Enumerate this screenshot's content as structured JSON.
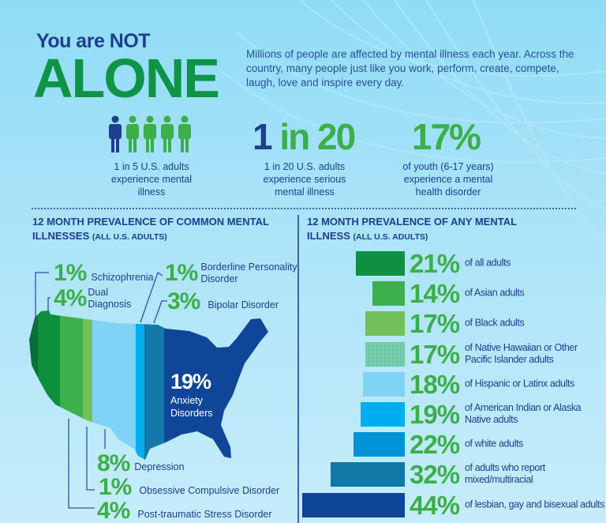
{
  "header": {
    "title_line1": "You are NOT",
    "title_line2": "ALONE",
    "intro": "Millions of people are affected by mental illness each year. Across the country, many people just like you work, perform, create, compete, laugh, love and inspire every day."
  },
  "stats": [
    {
      "icon": "people-icon",
      "caption": "1 in 5 U.S. adults experience mental illness"
    },
    {
      "big_a": "1",
      "big_b": " in 20",
      "caption": "1 in 20 U.S. adults experience serious mental illness"
    },
    {
      "big": "17%",
      "caption": "of youth (6-17 years) experience a mental health disorder"
    }
  ],
  "left_section": {
    "title": "12 MONTH PREVALENCE OF COMMON MENTAL ILLNESSES",
    "subtitle": "(ALL U.S. ADULTS)",
    "items": [
      {
        "pct": "1%",
        "label": "Schizophrenia"
      },
      {
        "pct": "4%",
        "label": "Dual Diagnosis"
      },
      {
        "pct": "1%",
        "label": "Borderline Personality Disorder"
      },
      {
        "pct": "3%",
        "label": "Bipolar Disorder"
      },
      {
        "pct": "19%",
        "label": "Anxiety Disorders"
      },
      {
        "pct": "8%",
        "label": "Depression"
      },
      {
        "pct": "1%",
        "label": "Obsessive Compulsive Disorder"
      },
      {
        "pct": "4%",
        "label": "Post-traumatic Stress Disorder"
      }
    ]
  },
  "colors": {
    "navy": "#1d3f8e",
    "green": "#3cae4a",
    "dark_green": "#0f9347"
  },
  "chart_data": {
    "type": "bar",
    "orientation": "horizontal",
    "title": "12 MONTH PREVALENCE OF ANY MENTAL ILLNESS",
    "subtitle": "(ALL U.S. ADULTS)",
    "categories": [
      "of all adults",
      "of Asian adults",
      "of Black adults",
      "of Native Hawaiian or Other Pacific Islander adults",
      "of Hispanic or Latinx adults",
      "of American Indian or Alaska Native adults",
      "of white adults",
      "of adults who report mixed/multiracial",
      "of lesbian, gay and bisexual adults"
    ],
    "values": [
      21,
      14,
      17,
      17,
      18,
      19,
      22,
      32,
      44
    ],
    "labels": [
      "21%",
      "14%",
      "17%",
      "17%",
      "18%",
      "19%",
      "22%",
      "32%",
      "44%"
    ],
    "colors": [
      "#0d9140",
      "#3db04b",
      "#72c05a",
      "#6cc7b0",
      "#7fd4f4",
      "#00aeef",
      "#0093d6",
      "#1278a8",
      "#0f4597"
    ],
    "unit": "%"
  }
}
